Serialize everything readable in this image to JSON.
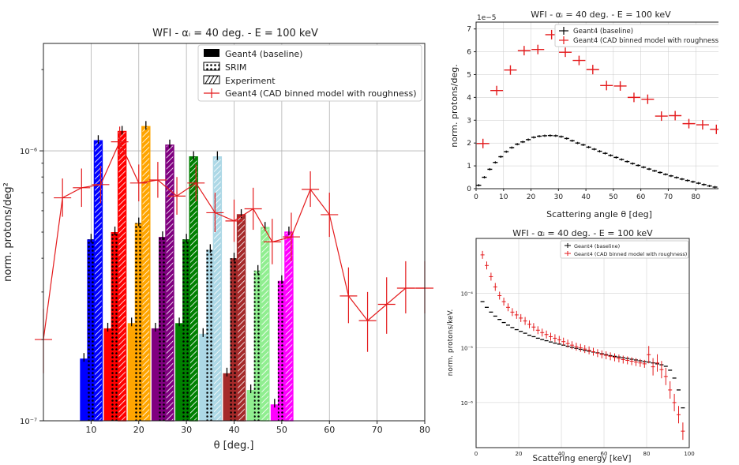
{
  "left": {
    "title": "WFI - αᵢ = 40 deg. - E = 100 keV",
    "xlabel": "θ [deg.]",
    "ylabel": "norm. protons/deg²",
    "xticks": [
      "10",
      "20",
      "30",
      "40",
      "50",
      "60",
      "70",
      "80"
    ],
    "yticks": [
      "10⁻⁶",
      "10⁻⁷"
    ],
    "legend": {
      "baseline": "Geant4 (baseline)",
      "srim": "SRIM",
      "experiment": "Experiment",
      "cad": "Geant4  (CAD binned model with roughness)"
    }
  },
  "topright": {
    "title": "WFI - αᵢ = 40 deg. - E = 100 keV",
    "offset": "1e−5",
    "xlabel": "Scattering angle θ [deg]",
    "ylabel": "norm. protons/deg.",
    "xticks": [
      "0",
      "10",
      "20",
      "30",
      "40",
      "50",
      "60",
      "70",
      "80",
      "90"
    ],
    "yticks": [
      "0",
      "1",
      "2",
      "3",
      "4",
      "5",
      "6",
      "7"
    ],
    "legend": {
      "baseline": "Geant4 (baseline)",
      "cad": "Geant4  (CAD binned model with roughness)"
    }
  },
  "bottomright": {
    "title": "WFI - αᵢ = 40 deg. - E = 100 keV",
    "xlabel": "Scattering energy [keV]",
    "ylabel": "norm. protons/keV.",
    "xticks": [
      "0",
      "20",
      "40",
      "60",
      "80",
      "100"
    ],
    "yticks": [
      "10⁻⁴",
      "10⁻⁵",
      "10⁻⁶"
    ],
    "legend": {
      "baseline": "Geant4 (baseline)",
      "cad": "Geant4 (CAD binned model with roughness)"
    }
  },
  "chart_data": [
    {
      "type": "bar",
      "title": "WFI - αᵢ = 40 deg. - E = 100 keV",
      "xlabel": "θ [deg.]",
      "ylabel": "norm. protons/deg²",
      "xlim": [
        0,
        80
      ],
      "ylim": [
        1e-07,
        2.5e-06
      ],
      "yscale": "log",
      "legend_position": "top-right",
      "groups": [
        {
          "color": "#0000ff",
          "x": [
            8.5,
            10,
            11.5
          ],
          "values": [
            1.7e-07,
            4.7e-07,
            1.09e-06
          ]
        },
        {
          "color": "#ff0000",
          "x": [
            13.5,
            15,
            16.5
          ],
          "values": [
            2.2e-07,
            5e-07,
            1.18e-06
          ]
        },
        {
          "color": "#ffa500",
          "x": [
            18.5,
            20,
            21.5
          ],
          "values": [
            2.3e-07,
            5.4e-07,
            1.23e-06
          ]
        },
        {
          "color": "#800080",
          "x": [
            23.5,
            25,
            26.5
          ],
          "values": [
            2.2e-07,
            4.8e-07,
            1.05e-06
          ]
        },
        {
          "color": "#008000",
          "x": [
            28.5,
            30,
            31.5
          ],
          "values": [
            2.3e-07,
            4.7e-07,
            9.5e-07
          ]
        },
        {
          "color": "#add8e6",
          "x": [
            33.5,
            35,
            36.5
          ],
          "values": [
            2.1e-07,
            4.3e-07,
            9.5e-07
          ]
        },
        {
          "color": "#a52a2a",
          "x": [
            38.5,
            40,
            41.5
          ],
          "values": [
            1.5e-07,
            4e-07,
            5.8e-07
          ]
        },
        {
          "color": "#90ee90",
          "x": [
            43.5,
            45,
            46.5
          ],
          "values": [
            1.3e-07,
            3.6e-07,
            5.2e-07
          ]
        },
        {
          "color": "#ff00ff",
          "x": [
            48.5,
            50,
            51.5
          ],
          "values": [
            1.15e-07,
            3.3e-07,
            5e-07
          ]
        }
      ],
      "series": [
        {
          "name": "Geant4 (baseline)",
          "x": [
            8.5,
            13.5,
            18.5,
            23.5,
            28.5,
            33.5,
            38.5,
            43.5,
            48.5
          ],
          "values": [
            1.7e-07,
            2.2e-07,
            2.3e-07,
            2.2e-07,
            2.3e-07,
            2.1e-07,
            1.5e-07,
            1.3e-07,
            1.15e-07
          ]
        },
        {
          "name": "SRIM",
          "x": [
            10,
            15,
            20,
            25,
            30,
            35,
            40,
            45,
            50
          ],
          "values": [
            4.7e-07,
            5e-07,
            5.4e-07,
            4.8e-07,
            4.7e-07,
            4.3e-07,
            4e-07,
            3.6e-07,
            3.3e-07
          ]
        },
        {
          "name": "Experiment",
          "x": [
            11.5,
            16.5,
            21.5,
            26.5,
            31.5,
            36.5,
            41.5,
            46.5,
            51.5
          ],
          "values": [
            1.09e-06,
            1.18e-06,
            1.23e-06,
            1.05e-06,
            9.5e-07,
            9.5e-07,
            5.8e-07,
            5.2e-07,
            5e-07
          ]
        },
        {
          "name": "Geant4  (CAD binned model with roughness)",
          "color": "#e41a1c",
          "x": [
            0,
            4,
            8,
            12,
            16,
            20,
            24,
            28,
            32,
            36,
            40,
            44,
            48,
            52,
            56,
            60,
            64,
            68,
            72,
            76,
            80
          ],
          "values": [
            2e-07,
            6.7e-07,
            7.3e-07,
            7.5e-07,
            1.08e-06,
            7.6e-07,
            7.8e-07,
            6.8e-07,
            7.6e-07,
            5.9e-07,
            5.5e-07,
            6.1e-07,
            4.6e-07,
            4.8e-07,
            7.2e-07,
            5.8e-07,
            2.9e-07,
            2.35e-07,
            2.7e-07,
            3.1e-07,
            3.1e-07
          ],
          "err_low": [
            1.5e-07,
            5.7e-07,
            6.2e-07,
            6.4e-07,
            9.5e-07,
            6.5e-07,
            6.7e-07,
            5.8e-07,
            6.5e-07,
            5e-07,
            4.6e-07,
            5.1e-07,
            3.8e-07,
            3.9e-07,
            6.2e-07,
            4.8e-07,
            2.3e-07,
            1.8e-07,
            2.1e-07,
            2.5e-07,
            2.5e-07
          ],
          "err_high": [
            2.6e-07,
            7.9e-07,
            8.6e-07,
            8.8e-07,
            1.23e-06,
            8.9e-07,
            9.1e-07,
            8e-07,
            8.9e-07,
            7e-07,
            6.6e-07,
            7.3e-07,
            5.6e-07,
            5.9e-07,
            8.4e-07,
            7e-07,
            3.7e-07,
            3e-07,
            3.4e-07,
            3.9e-07,
            3.9e-07
          ]
        }
      ]
    },
    {
      "type": "scatter",
      "title": "WFI - αᵢ = 40 deg. - E = 100 keV",
      "xlabel": "Scattering angle θ [deg]",
      "ylabel": "norm. protons/deg.",
      "xlim": [
        0,
        90
      ],
      "ylim": [
        0,
        7.3e-05
      ],
      "legend_position": "top-right",
      "series": [
        {
          "name": "Geant4 (baseline)",
          "color": "#000000",
          "x": [
            1,
            3,
            5,
            7,
            9,
            11,
            13,
            15,
            17,
            19,
            21,
            23,
            25,
            27,
            29,
            31,
            33,
            35,
            37,
            39,
            41,
            43,
            45,
            47,
            49,
            51,
            53,
            55,
            57,
            59,
            61,
            63,
            65,
            67,
            69,
            71,
            73,
            75,
            77,
            79,
            81,
            83,
            85,
            87,
            89
          ],
          "values": [
            1.5e-06,
            5e-06,
            8.5e-06,
            1.15e-05,
            1.4e-05,
            1.62e-05,
            1.8e-05,
            1.95e-05,
            2.05e-05,
            2.15e-05,
            2.25e-05,
            2.3e-05,
            2.32e-05,
            2.33e-05,
            2.32e-05,
            2.28e-05,
            2.2e-05,
            2.1e-05,
            2e-05,
            1.92e-05,
            1.82e-05,
            1.73e-05,
            1.64e-05,
            1.55e-05,
            1.46e-05,
            1.37e-05,
            1.28e-05,
            1.19e-05,
            1.1e-05,
            1.02e-05,
            9.4e-06,
            8.6e-06,
            7.8e-06,
            7.1e-06,
            6.3e-06,
            5.6e-06,
            4.9e-06,
            4.2e-06,
            3.6e-06,
            3e-06,
            2.4e-06,
            1.8e-06,
            1.2e-06,
            7e-07,
            2e-07
          ]
        },
        {
          "name": "Geant4  (CAD binned model with roughness)",
          "color": "#e41a1c",
          "x": [
            2.5,
            7.5,
            12.5,
            17.5,
            22.5,
            27.5,
            32.5,
            37.5,
            42.5,
            47.5,
            52.5,
            57.5,
            62.5,
            67.5,
            72.5,
            77.5,
            82.5,
            87.5
          ],
          "values": [
            1.98e-05,
            4.3e-05,
            5.2e-05,
            6.05e-05,
            6.1e-05,
            6.75e-05,
            5.98e-05,
            5.62e-05,
            5.22e-05,
            4.52e-05,
            4.5e-05,
            4e-05,
            3.92e-05,
            3.18e-05,
            3.2e-05,
            2.85e-05,
            2.8e-05,
            2.6e-05
          ]
        }
      ]
    },
    {
      "type": "scatter",
      "title": "WFI - αᵢ = 40 deg. - E = 100 keV",
      "xlabel": "Scattering energy [keV]",
      "ylabel": "norm. protons/keV.",
      "xlim": [
        0,
        100
      ],
      "ylim": [
        1.5e-07,
        0.001
      ],
      "yscale": "log",
      "legend_position": "top-right",
      "series": [
        {
          "name": "Geant4 (baseline)",
          "color": "#000000",
          "x": [
            3,
            5,
            7,
            9,
            11,
            13,
            15,
            17,
            19,
            21,
            23,
            25,
            27,
            29,
            31,
            33,
            35,
            37,
            39,
            41,
            43,
            45,
            47,
            49,
            51,
            53,
            55,
            57,
            59,
            61,
            63,
            65,
            67,
            69,
            71,
            73,
            75,
            77,
            79,
            81,
            83,
            85,
            87,
            89,
            91,
            93,
            95,
            97
          ],
          "values": [
            7e-05,
            5.5e-05,
            4.5e-05,
            3.8e-05,
            3.3e-05,
            2.9e-05,
            2.6e-05,
            2.35e-05,
            2.15e-05,
            2e-05,
            1.85e-05,
            1.7e-05,
            1.6e-05,
            1.5e-05,
            1.42e-05,
            1.35e-05,
            1.28e-05,
            1.22e-05,
            1.17e-05,
            1.12e-05,
            1.07e-05,
            1.02e-05,
            9.8e-06,
            9.4e-06,
            9e-06,
            8.7e-06,
            8.4e-06,
            8.1e-06,
            7.8e-06,
            7.5e-06,
            7.2e-06,
            7e-06,
            6.8e-06,
            6.6e-06,
            6.4e-06,
            6.2e-06,
            6e-06,
            5.8e-06,
            5.6e-06,
            5.5e-06,
            5.3e-06,
            5.1e-06,
            4.9e-06,
            4.6e-06,
            3.9e-06,
            2.8e-06,
            1.7e-06,
            8e-07
          ]
        },
        {
          "name": "Geant4 (CAD binned model with roughness)",
          "color": "#e41a1c",
          "x": [
            3,
            5,
            7,
            9,
            11,
            13,
            15,
            17,
            19,
            21,
            23,
            25,
            27,
            29,
            31,
            33,
            35,
            37,
            39,
            41,
            43,
            45,
            47,
            49,
            51,
            53,
            55,
            57,
            59,
            61,
            63,
            65,
            67,
            69,
            71,
            73,
            75,
            77,
            79,
            81,
            83,
            85,
            87,
            89,
            91,
            93,
            95,
            97
          ],
          "values": [
            0.0005,
            0.00032,
            0.0002,
            0.00013,
            9e-05,
            7e-05,
            5.5e-05,
            4.5e-05,
            4e-05,
            3.5e-05,
            3.1e-05,
            2.7e-05,
            2.4e-05,
            2.1e-05,
            1.9e-05,
            1.75e-05,
            1.6e-05,
            1.5e-05,
            1.4e-05,
            1.3e-05,
            1.2e-05,
            1.12e-05,
            1.05e-05,
            1e-05,
            9.5e-06,
            9e-06,
            8.5e-06,
            8e-06,
            7.6e-06,
            7.3e-06,
            7e-06,
            6.7e-06,
            6.4e-06,
            6.1e-06,
            5.9e-06,
            5.7e-06,
            5.5e-06,
            5.3e-06,
            5.1e-06,
            7.5e-06,
            4.5e-06,
            5.3e-06,
            4e-06,
            3e-06,
            1.7e-06,
            1e-06,
            6e-07,
            3e-07
          ]
        }
      ]
    }
  ]
}
